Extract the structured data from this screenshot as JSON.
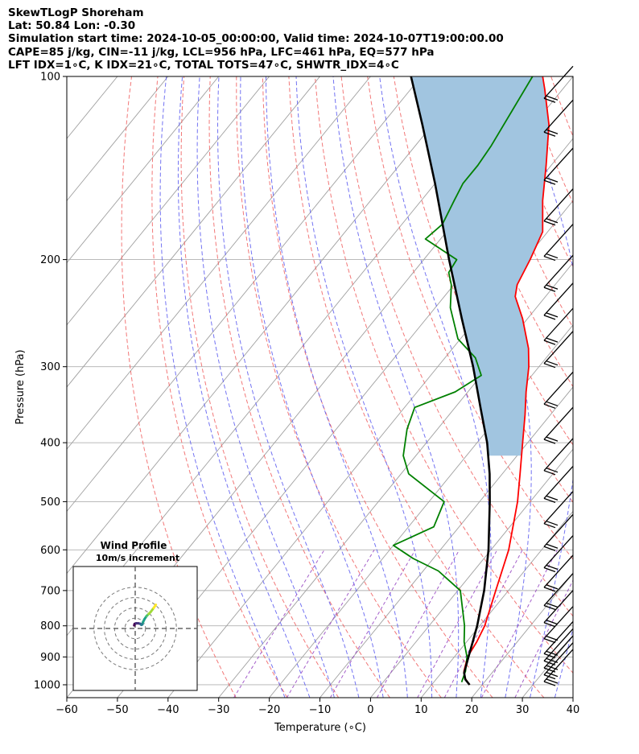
{
  "header": {
    "line1": "SkewTLogP Shoreham",
    "line2": "Lat: 50.84   Lon: -0.30",
    "line3": "Simulation start time: 2024-10-05_00:00:00, Valid time: 2024-10-07T19:00:00.00",
    "line4": "CAPE=85 j/kg, CIN=-11 j/kg, LCL=956 hPa, LFC=461 hPa, EQ=577 hPa",
    "line5": "LFT IDX=1∘C, K IDX=21∘C, TOTAL TOTS=47∘C, SHWTR_IDX=4∘C"
  },
  "chart_data": {
    "type": "line",
    "title": "SkewTLogP Shoreham",
    "xlabel": "Temperature (∘C)",
    "ylabel": "Pressure (hPa)",
    "xlim": [
      -60,
      40
    ],
    "ylim": [
      1050,
      100
    ],
    "y_scale": "log",
    "grid": true,
    "x_ticks": [
      -60,
      -50,
      -40,
      -30,
      -20,
      -10,
      0,
      10,
      20,
      30,
      40
    ],
    "x_tick_labels": [
      "−60",
      "−50",
      "−40",
      "−30",
      "−20",
      "−10",
      "0",
      "10",
      "20",
      "30",
      "40"
    ],
    "y_ticks": [
      1000,
      900,
      800,
      700,
      600,
      500,
      400,
      300,
      200,
      100
    ],
    "y_tick_labels": [
      "1000",
      "900",
      "800",
      "700",
      "600",
      "500",
      "400",
      "300",
      "200",
      "100"
    ],
    "colors": {
      "temperature": "#ff0000",
      "dewpoint": "#008000",
      "parcel": "#000000",
      "cape_fill": "#a1c5e0",
      "dry_adiabat": "#f06060",
      "moist_adiabat": "#5a5af0",
      "mixing_ratio": "#9a4cc4",
      "isotherm": "#a0a0a0"
    },
    "series": [
      {
        "key": "temperature",
        "points": [
          [
            1000,
            17.5
          ],
          [
            975,
            15.5
          ],
          [
            950,
            14.2
          ],
          [
            900,
            12.6
          ],
          [
            850,
            12.0
          ],
          [
            800,
            11.0
          ],
          [
            700,
            7.5
          ],
          [
            600,
            3.5
          ],
          [
            500,
            -2.5
          ],
          [
            450,
            -6.5
          ],
          [
            400,
            -11
          ],
          [
            360,
            -15
          ],
          [
            330,
            -18.5
          ],
          [
            300,
            -22
          ],
          [
            280,
            -25
          ],
          [
            250,
            -31
          ],
          [
            230,
            -36
          ],
          [
            220,
            -37.5
          ],
          [
            200,
            -39
          ],
          [
            180,
            -41
          ],
          [
            160,
            -46
          ],
          [
            140,
            -51
          ],
          [
            120,
            -57
          ],
          [
            105,
            -63.5
          ],
          [
            100,
            -66
          ]
        ]
      },
      {
        "key": "dewpoint",
        "points": [
          [
            990,
            15.5
          ],
          [
            950,
            14.5
          ],
          [
            900,
            12.5
          ],
          [
            850,
            9.5
          ],
          [
            800,
            7.0
          ],
          [
            700,
            0.5
          ],
          [
            650,
            -7
          ],
          [
            620,
            -14
          ],
          [
            590,
            -20
          ],
          [
            550,
            -15
          ],
          [
            500,
            -17
          ],
          [
            450,
            -28.5
          ],
          [
            420,
            -32.5
          ],
          [
            380,
            -36
          ],
          [
            350,
            -38
          ],
          [
            330,
            -32.5
          ],
          [
            310,
            -30
          ],
          [
            290,
            -34
          ],
          [
            270,
            -40.5
          ],
          [
            240,
            -47
          ],
          [
            220,
            -50.5
          ],
          [
            210,
            -53
          ],
          [
            200,
            -53.5
          ],
          [
            185,
            -63
          ],
          [
            175,
            -62
          ],
          [
            160,
            -63.5
          ],
          [
            150,
            -64.5
          ],
          [
            140,
            -64.5
          ],
          [
            130,
            -65
          ],
          [
            100,
            -68
          ]
        ]
      },
      {
        "key": "parcel",
        "points": [
          [
            1000,
            17.5
          ],
          [
            980,
            15.8
          ],
          [
            956,
            14.5
          ],
          [
            900,
            12.8
          ],
          [
            850,
            11.2
          ],
          [
            800,
            9.5
          ],
          [
            700,
            5.2
          ],
          [
            600,
            -0.5
          ],
          [
            500,
            -8
          ],
          [
            450,
            -12.5
          ],
          [
            400,
            -18
          ],
          [
            350,
            -25
          ],
          [
            300,
            -33
          ],
          [
            250,
            -43
          ],
          [
            200,
            -55
          ],
          [
            150,
            -70
          ],
          [
            120,
            -82
          ],
          [
            100,
            -92
          ]
        ]
      }
    ],
    "wind_barbs": {
      "pressures": [
        1000,
        975,
        950,
        925,
        900,
        850,
        800,
        750,
        700,
        650,
        600,
        550,
        500,
        450,
        400,
        350,
        300,
        275,
        250,
        225,
        200,
        175,
        150,
        125,
        110
      ]
    },
    "hodograph": {
      "title": "Wind Profile",
      "subtitle": "10m/s increment",
      "rings_ms": [
        10,
        20,
        30,
        40
      ],
      "points_uv": [
        [
          -1,
          3
        ],
        [
          -0.5,
          4.5
        ],
        [
          1,
          5
        ],
        [
          3,
          5
        ],
        [
          5,
          4.5
        ],
        [
          6,
          3.5
        ],
        [
          7,
          4
        ],
        [
          7.5,
          6
        ],
        [
          9,
          9
        ],
        [
          11,
          12
        ],
        [
          13,
          14
        ],
        [
          15,
          16
        ],
        [
          18,
          20
        ],
        [
          20,
          23
        ]
      ]
    }
  }
}
